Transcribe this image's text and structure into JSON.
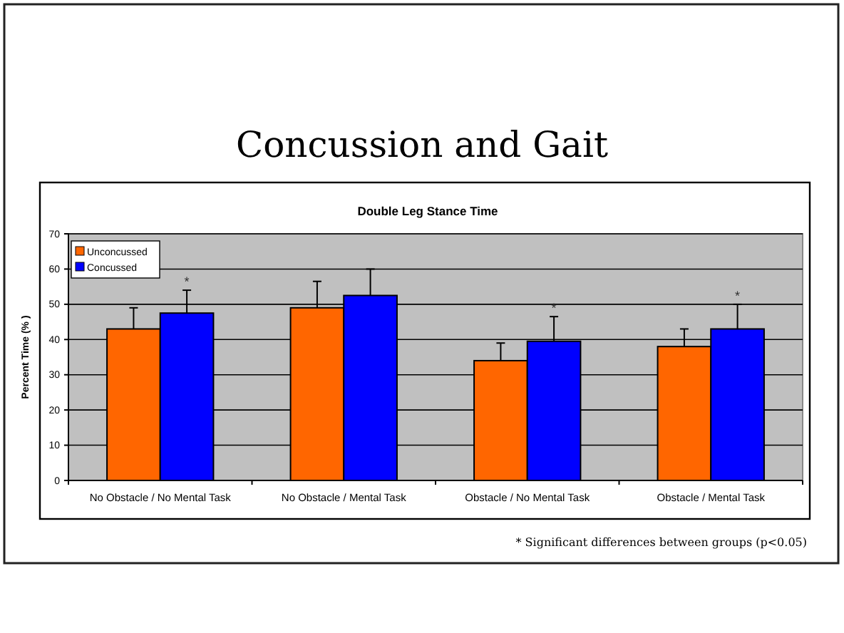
{
  "chart_data": {
    "type": "bar",
    "title": "Concussion and Gait",
    "subtitle": "Double Leg Stance Time",
    "ylabel": "Percent Time (% )",
    "categories": [
      "No Obstacle / No Mental Task",
      "No Obstacle / Mental Task",
      "Obstacle / No Mental Task",
      "Obstacle / Mental Task"
    ],
    "series": [
      {
        "name": "Unconcussed",
        "color": "#ff6600",
        "values": [
          43,
          49,
          34,
          38
        ],
        "errors": [
          [
            43,
            49
          ],
          [
            49,
            56.5
          ],
          [
            34,
            39
          ],
          [
            38,
            43
          ]
        ]
      },
      {
        "name": "Concussed",
        "color": "#0000ff",
        "values": [
          47.5,
          52.5,
          39.5,
          43
        ],
        "errors": [
          [
            47.5,
            54
          ],
          [
            52.5,
            60
          ],
          [
            39.5,
            46.5
          ],
          [
            43,
            50
          ]
        ]
      }
    ],
    "ylim": [
      0,
      70
    ],
    "yticks": [
      0,
      10,
      20,
      30,
      40,
      50,
      60,
      70
    ],
    "grid": "y",
    "legend": "top left",
    "annotations": [
      {
        "text": "*",
        "x": "No Obstacle / No Mental Task",
        "y": 47.5
      },
      {
        "text": "*",
        "x": "Obstacle / No Mental Task",
        "y": 39.5
      },
      {
        "text": "*",
        "x": "Obstacle / Mental Task",
        "y": 43
      },
      "* Significant differences between groups (p<0.05)"
    ]
  }
}
